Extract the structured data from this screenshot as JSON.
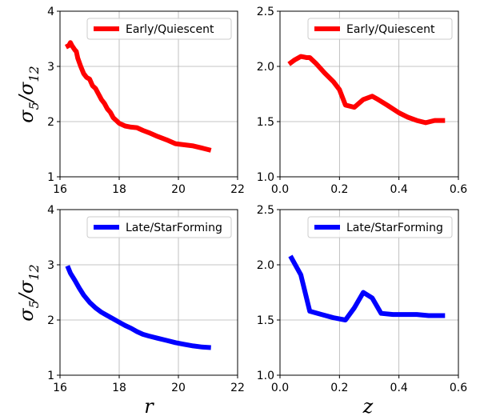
{
  "figure": {
    "ylabel_left": "σ5/σ12",
    "xlabel_r": "r",
    "xlabel_z": "z"
  },
  "chart_data": [
    {
      "type": "line",
      "panel": "top-left",
      "xlabel": "",
      "ylabel": "σ5/σ12",
      "xlim": [
        16,
        22
      ],
      "ylim": [
        1,
        4
      ],
      "xticks": [
        16,
        18,
        20,
        22
      ],
      "yticks": [
        1,
        2,
        3,
        4
      ],
      "grid": true,
      "legend_position": "top-right",
      "series": [
        {
          "name": "Early/Quiescent",
          "color": "#ff0000",
          "x": [
            16.2,
            16.3,
            16.35,
            16.4,
            16.5,
            16.55,
            16.6,
            16.7,
            16.8,
            16.9,
            17.0,
            17.1,
            17.2,
            17.3,
            17.4,
            17.5,
            17.6,
            17.7,
            17.8,
            17.9,
            18.0,
            18.2,
            18.4,
            18.6,
            18.8,
            19.0,
            19.3,
            19.6,
            19.9,
            20.2,
            20.5,
            20.8,
            21.1
          ],
          "y": [
            3.35,
            3.38,
            3.43,
            3.38,
            3.3,
            3.27,
            3.15,
            3.0,
            2.87,
            2.8,
            2.77,
            2.65,
            2.6,
            2.5,
            2.4,
            2.33,
            2.23,
            2.17,
            2.07,
            2.02,
            1.97,
            1.92,
            1.9,
            1.89,
            1.84,
            1.8,
            1.73,
            1.67,
            1.6,
            1.58,
            1.56,
            1.52,
            1.48
          ]
        }
      ]
    },
    {
      "type": "line",
      "panel": "top-right",
      "xlabel": "",
      "ylabel": "",
      "xlim": [
        0.0,
        0.6
      ],
      "ylim": [
        1.0,
        2.5
      ],
      "xticks": [
        "0.0",
        "0.2",
        "0.4",
        "0.6"
      ],
      "yticks": [
        "1.0",
        "1.5",
        "2.0",
        "2.5"
      ],
      "grid": true,
      "legend_position": "top-right",
      "series": [
        {
          "name": "Early/Quiescent",
          "color": "#ff0000",
          "x": [
            0.03,
            0.05,
            0.07,
            0.09,
            0.1,
            0.12,
            0.15,
            0.18,
            0.2,
            0.22,
            0.25,
            0.28,
            0.31,
            0.33,
            0.36,
            0.4,
            0.43,
            0.46,
            0.49,
            0.52,
            0.555
          ],
          "y": [
            2.02,
            2.06,
            2.09,
            2.08,
            2.08,
            2.03,
            1.94,
            1.86,
            1.79,
            1.65,
            1.63,
            1.7,
            1.73,
            1.7,
            1.65,
            1.58,
            1.54,
            1.51,
            1.49,
            1.51,
            1.51
          ]
        }
      ]
    },
    {
      "type": "line",
      "panel": "bottom-left",
      "xlabel": "r",
      "ylabel": "σ5/σ12",
      "xlim": [
        16,
        22
      ],
      "ylim": [
        1,
        4
      ],
      "xticks": [
        16,
        18,
        20,
        22
      ],
      "yticks": [
        1,
        2,
        3,
        4
      ],
      "grid": true,
      "legend_position": "top-right",
      "series": [
        {
          "name": "Late/StarForming",
          "color": "#0000ff",
          "x": [
            16.25,
            16.35,
            16.5,
            16.65,
            16.8,
            17.0,
            17.2,
            17.4,
            17.6,
            17.8,
            18.0,
            18.2,
            18.4,
            18.6,
            18.8,
            19.0,
            19.3,
            19.6,
            19.9,
            20.2,
            20.5,
            20.8,
            21.1
          ],
          "y": [
            2.98,
            2.85,
            2.72,
            2.58,
            2.45,
            2.32,
            2.22,
            2.14,
            2.08,
            2.02,
            1.96,
            1.9,
            1.85,
            1.79,
            1.74,
            1.71,
            1.67,
            1.63,
            1.59,
            1.56,
            1.53,
            1.51,
            1.5
          ]
        }
      ]
    },
    {
      "type": "line",
      "panel": "bottom-right",
      "xlabel": "z",
      "ylabel": "",
      "xlim": [
        0.0,
        0.6
      ],
      "ylim": [
        1.0,
        2.5
      ],
      "xticks": [
        "0.0",
        "0.2",
        "0.4",
        "0.6"
      ],
      "yticks": [
        "1.0",
        "1.5",
        "2.0",
        "2.5"
      ],
      "grid": true,
      "legend_position": "top-right",
      "series": [
        {
          "name": "Late/StarForming",
          "color": "#0000ff",
          "x": [
            0.035,
            0.07,
            0.1,
            0.14,
            0.18,
            0.22,
            0.25,
            0.28,
            0.31,
            0.34,
            0.38,
            0.42,
            0.46,
            0.5,
            0.555
          ],
          "y": [
            2.08,
            1.91,
            1.58,
            1.55,
            1.52,
            1.5,
            1.61,
            1.75,
            1.7,
            1.56,
            1.55,
            1.55,
            1.55,
            1.54,
            1.54
          ]
        }
      ]
    }
  ]
}
